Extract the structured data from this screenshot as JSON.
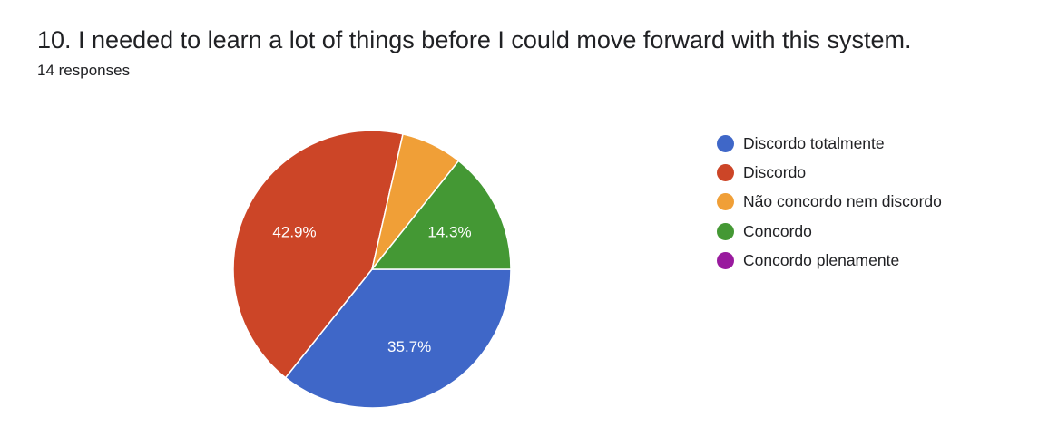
{
  "question": {
    "title": "10. I needed to learn a lot of things before I could move forward with this system.",
    "responses": "14 responses"
  },
  "chart_data": {
    "type": "pie",
    "title": "10. I needed to learn a lot of things before I could move forward with this system.",
    "total_responses": 14,
    "start_angle_deg": 90,
    "direction": "clockwise",
    "slices": [
      {
        "name": "Discordo totalmente",
        "count": 5,
        "value": 35.7,
        "label": "35.7%",
        "color": "#3F67C8"
      },
      {
        "name": "Discordo",
        "count": 6,
        "value": 42.9,
        "label": "42.9%",
        "color": "#CC4527"
      },
      {
        "name": "Não concordo nem discordo",
        "count": 1,
        "value": 7.1,
        "label": "",
        "color": "#F09F37"
      },
      {
        "name": "Concordo",
        "count": 2,
        "value": 14.3,
        "label": "14.3%",
        "color": "#449834"
      },
      {
        "name": "Concordo plenamente",
        "count": 0,
        "value": 0,
        "label": "",
        "color": "#991A9E"
      }
    ],
    "legend_position": "right"
  }
}
